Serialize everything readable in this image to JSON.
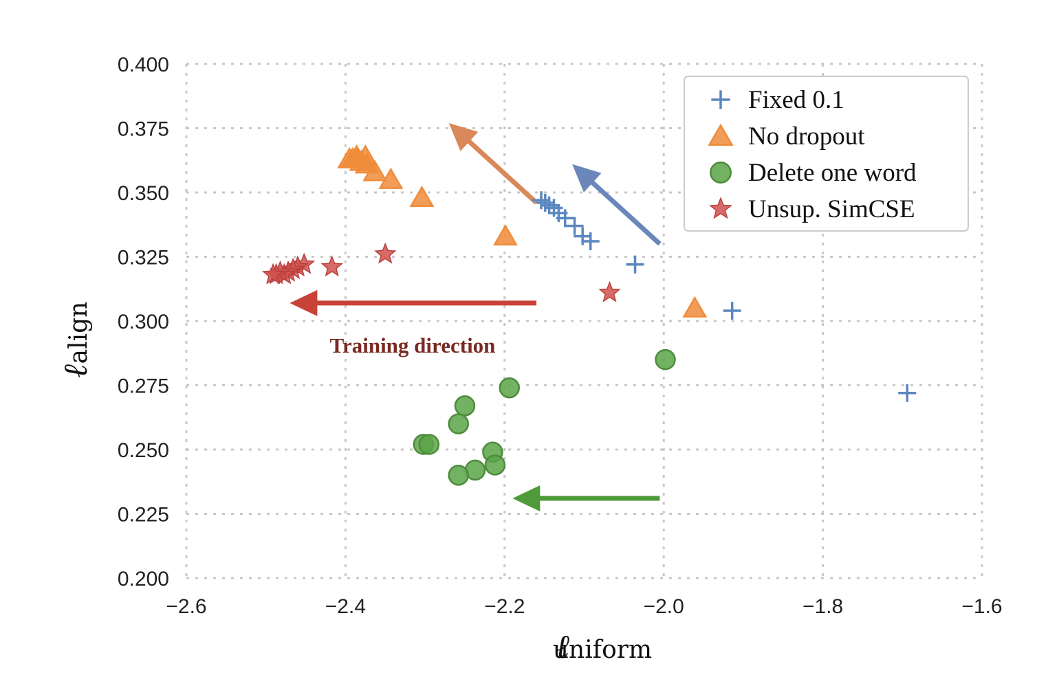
{
  "chart_data": {
    "type": "scatter",
    "xlabel_symbol": "ℓ",
    "xlabel_subscript": "uniform",
    "ylabel_symbol": "ℓ",
    "ylabel_subscript": "align",
    "xlim": [
      -2.6,
      -1.6
    ],
    "ylim": [
      0.2,
      0.4
    ],
    "x_ticks": [
      -2.6,
      -2.4,
      -2.2,
      -2.0,
      -1.8,
      -1.6
    ],
    "x_tick_labels": [
      "−2.6",
      "−2.4",
      "−2.2",
      "−2.0",
      "−1.8",
      "−1.6"
    ],
    "y_ticks": [
      0.2,
      0.225,
      0.25,
      0.275,
      0.3,
      0.325,
      0.35,
      0.375,
      0.4
    ],
    "y_tick_labels": [
      "0.200",
      "0.225",
      "0.250",
      "0.275",
      "0.300",
      "0.325",
      "0.350",
      "0.375",
      "0.400"
    ],
    "grid": true,
    "legend_position": "top-right",
    "series": [
      {
        "name": "Fixed 0.1",
        "marker": "plus",
        "color": "#5b87bf",
        "points": [
          [
            -1.694,
            0.272
          ],
          [
            -1.914,
            0.304
          ],
          [
            -2.036,
            0.322
          ],
          [
            -2.092,
            0.331
          ],
          [
            -2.102,
            0.333
          ],
          [
            -2.112,
            0.337
          ],
          [
            -2.124,
            0.34
          ],
          [
            -2.132,
            0.342
          ],
          [
            -2.138,
            0.344
          ],
          [
            -2.144,
            0.345
          ],
          [
            -2.149,
            0.346
          ],
          [
            -2.154,
            0.347
          ]
        ]
      },
      {
        "name": "No dropout",
        "marker": "triangle",
        "color": "#ef8c3b",
        "points": [
          [
            -1.961,
            0.305
          ],
          [
            -2.199,
            0.333
          ],
          [
            -2.304,
            0.348
          ],
          [
            -2.343,
            0.355
          ],
          [
            -2.363,
            0.358
          ],
          [
            -2.373,
            0.361
          ],
          [
            -2.38,
            0.362
          ],
          [
            -2.385,
            0.363
          ],
          [
            -2.391,
            0.363
          ],
          [
            -2.375,
            0.364
          ],
          [
            -2.386,
            0.364
          ],
          [
            -2.395,
            0.363
          ]
        ]
      },
      {
        "name": "Delete one word",
        "marker": "circle",
        "color": "#5aa348",
        "points": [
          [
            -1.998,
            0.285
          ],
          [
            -2.194,
            0.274
          ],
          [
            -2.25,
            0.267
          ],
          [
            -2.258,
            0.26
          ],
          [
            -2.302,
            0.252
          ],
          [
            -2.295,
            0.252
          ],
          [
            -2.215,
            0.249
          ],
          [
            -2.212,
            0.244
          ],
          [
            -2.237,
            0.242
          ],
          [
            -2.258,
            0.24
          ]
        ]
      },
      {
        "name": "Unsup. SimCSE",
        "marker": "star",
        "color": "#d1504d",
        "points": [
          [
            -2.068,
            0.311
          ],
          [
            -2.35,
            0.326
          ],
          [
            -2.417,
            0.321
          ],
          [
            -2.452,
            0.322
          ],
          [
            -2.46,
            0.321
          ],
          [
            -2.466,
            0.32
          ],
          [
            -2.472,
            0.319
          ],
          [
            -2.477,
            0.318
          ],
          [
            -2.482,
            0.319
          ],
          [
            -2.487,
            0.318
          ],
          [
            -2.491,
            0.318
          ]
        ]
      }
    ],
    "arrows": [
      {
        "color": "#d9885a",
        "from": [
          -2.16,
          0.346
        ],
        "to": [
          -2.27,
          0.377
        ]
      },
      {
        "color": "#6b86bb",
        "from": [
          -2.005,
          0.33
        ],
        "to": [
          -2.115,
          0.361
        ]
      },
      {
        "color": "#c84238",
        "from": [
          -2.16,
          0.307
        ],
        "to": [
          -2.47,
          0.307
        ]
      },
      {
        "color": "#4f9a3a",
        "from": [
          -2.005,
          0.231
        ],
        "to": [
          -2.19,
          0.231
        ]
      }
    ],
    "annotations": [
      {
        "text": "Training direction",
        "color": "#7a2a24"
      }
    ]
  }
}
